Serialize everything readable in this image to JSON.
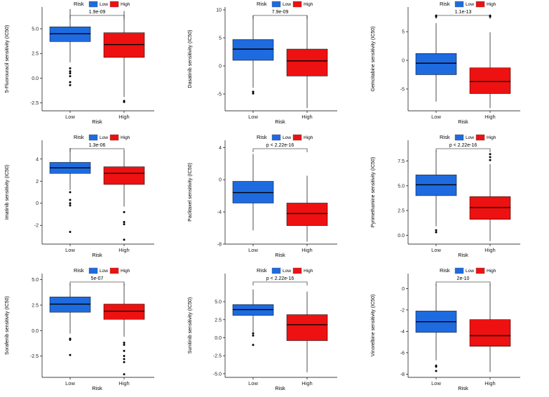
{
  "legend": {
    "title": "Risk",
    "labels": [
      "Low",
      "High"
    ]
  },
  "colors": {
    "low": "#1E6BE0",
    "high": "#EE1111",
    "axis": "#000000"
  },
  "chart_data": [
    {
      "type": "boxplot",
      "xlabel": "Risk",
      "ylabel": "5-Fluorouracil sensitivity (IC50)",
      "categories": [
        "Low",
        "High"
      ],
      "yticks": [
        -2.5,
        0.0,
        2.5,
        5.0
      ],
      "tick_labels": [
        "-2.5",
        "0.0",
        "2.5",
        "5.0"
      ],
      "ylim": [
        -3.3,
        7.2
      ],
      "pvalue": "1.9e-09",
      "boxes": [
        {
          "group": "Low",
          "min": 1.6,
          "q1": 3.7,
          "median": 4.5,
          "q3": 5.2,
          "max": 7.0,
          "outliers": [
            1.0,
            0.7,
            0.5,
            0.2,
            -0.4,
            -0.7
          ]
        },
        {
          "group": "High",
          "min": -1.9,
          "q1": 2.1,
          "median": 3.4,
          "q3": 4.6,
          "max": 6.8,
          "outliers": [
            -2.3,
            -2.4
          ]
        }
      ]
    },
    {
      "type": "boxplot",
      "xlabel": "Risk",
      "ylabel": "Dasatinib sensitivity (IC50)",
      "categories": [
        "Low",
        "High"
      ],
      "yticks": [
        -5,
        0,
        5,
        10
      ],
      "tick_labels": [
        "-5",
        "0",
        "5",
        "10"
      ],
      "ylim": [
        -8.0,
        10.5
      ],
      "pvalue": "7.9e-09",
      "boxes": [
        {
          "group": "Low",
          "min": -3.9,
          "q1": 1.0,
          "median": 3.0,
          "q3": 4.7,
          "max": 9.0,
          "outliers": [
            -4.6,
            -4.9
          ]
        },
        {
          "group": "High",
          "min": -7.5,
          "q1": -1.8,
          "median": 0.9,
          "q3": 3.0,
          "max": 9.0,
          "outliers": []
        }
      ]
    },
    {
      "type": "boxplot",
      "xlabel": "Risk",
      "ylabel": "Gemcitabine sensitivity (IC50)",
      "categories": [
        "Low",
        "High"
      ],
      "yticks": [
        -5,
        0,
        5
      ],
      "tick_labels": [
        "-5",
        "0",
        "5"
      ],
      "ylim": [
        -8.8,
        9.3
      ],
      "pvalue": "1.1e-13",
      "boxes": [
        {
          "group": "Low",
          "min": -7.2,
          "q1": -2.5,
          "median": -0.5,
          "q3": 1.2,
          "max": 6.5,
          "outliers": [
            7.8,
            7.6
          ]
        },
        {
          "group": "High",
          "min": -8.3,
          "q1": -5.8,
          "median": -3.7,
          "q3": -1.3,
          "max": 4.9,
          "outliers": [
            7.6,
            7.8
          ]
        }
      ]
    },
    {
      "type": "boxplot",
      "xlabel": "Risk",
      "ylabel": "Imatinib sensitivity (IC50)",
      "categories": [
        "Low",
        "High"
      ],
      "yticks": [
        -2,
        0,
        2,
        4
      ],
      "tick_labels": [
        "-2",
        "0",
        "2",
        "4"
      ],
      "ylim": [
        -3.7,
        5.7
      ],
      "pvalue": "1.3e-06",
      "boxes": [
        {
          "group": "Low",
          "min": 1.2,
          "q1": 2.7,
          "median": 3.2,
          "q3": 3.7,
          "max": 5.0,
          "outliers": [
            1.0,
            0.3,
            0.0,
            -0.2,
            -2.6
          ]
        },
        {
          "group": "High",
          "min": -0.3,
          "q1": 1.7,
          "median": 2.7,
          "q3": 3.3,
          "max": 4.7,
          "outliers": [
            -0.8,
            -1.7,
            -1.9,
            -3.3
          ]
        }
      ]
    },
    {
      "type": "boxplot",
      "xlabel": "Risk",
      "ylabel": "Paclitaxel sensitivity (IC50)",
      "categories": [
        "Low",
        "High"
      ],
      "yticks": [
        -8,
        -4,
        0,
        4
      ],
      "tick_labels": [
        "-8",
        "-4",
        "0",
        "4"
      ],
      "ylim": [
        -8.0,
        4.9
      ],
      "pvalue": "p < 2.22e-16",
      "boxes": [
        {
          "group": "Low",
          "min": -6.3,
          "q1": -2.9,
          "median": -1.6,
          "q3": -0.2,
          "max": 3.2,
          "outliers": []
        },
        {
          "group": "High",
          "min": -7.7,
          "q1": -5.7,
          "median": -4.2,
          "q3": -2.9,
          "max": 0.5,
          "outliers": []
        }
      ]
    },
    {
      "type": "boxplot",
      "xlabel": "Risk",
      "ylabel": "Pyrimethamine sensitivity (IC50)",
      "categories": [
        "Low",
        "High"
      ],
      "yticks": [
        0.0,
        2.5,
        5.0,
        7.5
      ],
      "tick_labels": [
        "0.0",
        "2.5",
        "5.0",
        "7.5"
      ],
      "ylim": [
        -0.9,
        9.6
      ],
      "pvalue": "p < 2.22e-16",
      "boxes": [
        {
          "group": "Low",
          "min": 0.9,
          "q1": 4.0,
          "median": 5.1,
          "q3": 6.1,
          "max": 8.5,
          "outliers": [
            0.5,
            0.3
          ]
        },
        {
          "group": "High",
          "min": -0.6,
          "q1": 1.6,
          "median": 2.8,
          "q3": 3.9,
          "max": 7.2,
          "outliers": [
            7.6,
            7.9,
            8.2
          ]
        }
      ]
    },
    {
      "type": "boxplot",
      "xlabel": "Risk",
      "ylabel": "Sorafenib sensitivity (IC50)",
      "categories": [
        "Low",
        "High"
      ],
      "yticks": [
        -2.5,
        0.0,
        2.5,
        5.0
      ],
      "tick_labels": [
        "-2.5",
        "0.0",
        "2.5",
        "5.0"
      ],
      "ylim": [
        -4.6,
        5.6
      ],
      "pvalue": "5e-07",
      "boxes": [
        {
          "group": "Low",
          "min": -0.3,
          "q1": 1.8,
          "median": 2.6,
          "q3": 3.3,
          "max": 4.6,
          "outliers": [
            -0.8,
            -0.9,
            -2.4
          ]
        },
        {
          "group": "High",
          "min": -0.6,
          "q1": 1.1,
          "median": 1.9,
          "q3": 2.6,
          "max": 4.6,
          "outliers": [
            -1.2,
            -1.4,
            -2.0,
            -2.5,
            -2.8,
            -3.1,
            -4.3
          ]
        }
      ]
    },
    {
      "type": "boxplot",
      "xlabel": "Risk",
      "ylabel": "Sunitinib sensitivity (IC50)",
      "categories": [
        "Low",
        "High"
      ],
      "yticks": [
        -5.0,
        -2.5,
        0.0,
        2.5,
        5.0
      ],
      "tick_labels": [
        "-5.0",
        "-2.5",
        "0.0",
        "2.5",
        "5.0"
      ],
      "ylim": [
        -5.5,
        8.9
      ],
      "pvalue": "p < 2.22e-16",
      "boxes": [
        {
          "group": "Low",
          "min": 0.8,
          "q1": 3.1,
          "median": 3.9,
          "q3": 4.6,
          "max": 6.7,
          "outliers": [
            0.6,
            0.3,
            -1.0
          ]
        },
        {
          "group": "High",
          "min": -4.8,
          "q1": -0.4,
          "median": 1.8,
          "q3": 3.2,
          "max": 6.4,
          "outliers": []
        }
      ]
    },
    {
      "type": "boxplot",
      "xlabel": "Risk",
      "ylabel": "Vinorelbine sensitivity (IC50)",
      "categories": [
        "Low",
        "High"
      ],
      "yticks": [
        -8,
        -6,
        -4,
        -2,
        0
      ],
      "tick_labels": [
        "-8",
        "-6",
        "-4",
        "-2",
        "0"
      ],
      "ylim": [
        -8.3,
        1.4
      ],
      "pvalue": "2e-10",
      "boxes": [
        {
          "group": "Low",
          "min": -6.7,
          "q1": -4.1,
          "median": -3.1,
          "q3": -2.1,
          "max": 0.4,
          "outliers": [
            -7.2,
            -7.3,
            -7.7
          ]
        },
        {
          "group": "High",
          "min": -7.8,
          "q1": -5.4,
          "median": -4.4,
          "q3": -2.9,
          "max": 0.4,
          "outliers": []
        }
      ]
    }
  ]
}
